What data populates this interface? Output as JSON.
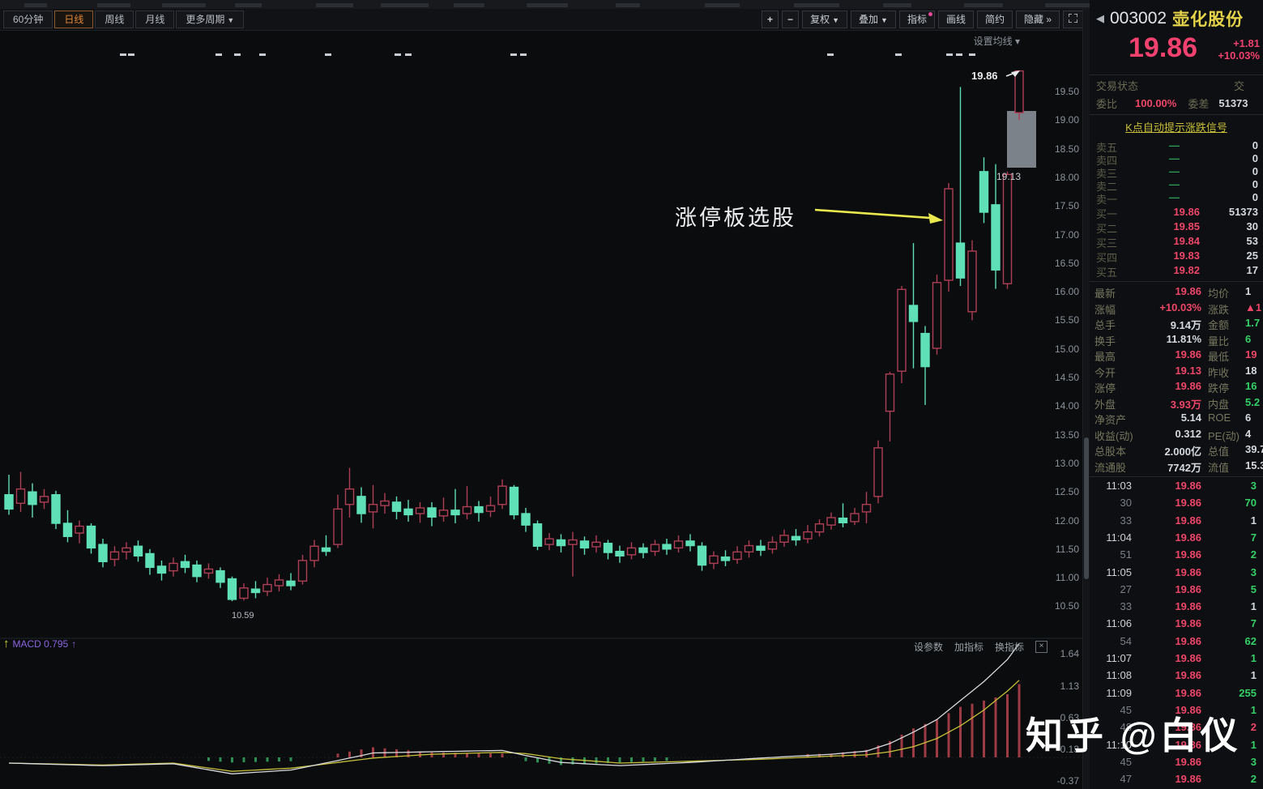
{
  "toolbar": {
    "period_tabs": [
      {
        "label": "60分钟",
        "active": false
      },
      {
        "label": "日线",
        "active": true
      },
      {
        "label": "周线",
        "active": false
      },
      {
        "label": "月线",
        "active": false
      },
      {
        "label": "更多周期",
        "active": false,
        "caret": true
      }
    ],
    "right_buttons": [
      {
        "label": "+",
        "sq": true
      },
      {
        "label": "−",
        "sq": true
      },
      {
        "label": "复权",
        "caret": true
      },
      {
        "label": "叠加",
        "caret": true
      },
      {
        "label": "指标",
        "dot": true
      },
      {
        "label": "画线"
      },
      {
        "label": "简约"
      },
      {
        "label": "隐藏 »"
      }
    ],
    "ma_setting": "设置均线 ▾"
  },
  "stock": {
    "code": "003002",
    "name": "壶化股份",
    "price": "19.86",
    "change": "+1.81",
    "change_pct": "+10.03%"
  },
  "panel": {
    "trade_status_label": "交易状态",
    "trade_status_right": "交",
    "weibi_label": "委比",
    "weibi_value": "100.00%",
    "weicha_label": "委差",
    "weicha_value": "51373",
    "signal_link": "K点自动提示涨跌信号",
    "sell_rows": [
      {
        "label": "卖五",
        "dash": "—",
        "vol": "0"
      },
      {
        "label": "卖四",
        "dash": "—",
        "vol": "0"
      },
      {
        "label": "卖三",
        "dash": "—",
        "vol": "0"
      },
      {
        "label": "卖二",
        "dash": "—",
        "vol": "0"
      },
      {
        "label": "卖一",
        "dash": "—",
        "vol": "0"
      }
    ],
    "buy_rows": [
      {
        "label": "买一",
        "price": "19.86",
        "vol": "51373"
      },
      {
        "label": "买二",
        "price": "19.85",
        "vol": "30"
      },
      {
        "label": "买三",
        "price": "19.84",
        "vol": "53"
      },
      {
        "label": "买四",
        "price": "19.83",
        "vol": "25"
      },
      {
        "label": "买五",
        "price": "19.82",
        "vol": "17"
      }
    ],
    "stats": [
      {
        "l": "最新",
        "v": "19.86",
        "vc": "pink",
        "l2": "均价",
        "v2": "1",
        "v2c": "white"
      },
      {
        "l": "涨幅",
        "v": "+10.03%",
        "vc": "pink",
        "l2": "涨跌",
        "v2": "▲1",
        "v2c": "pink"
      },
      {
        "l": "总手",
        "v": "9.14万",
        "vc": "white",
        "l2": "金额",
        "v2": "1.7",
        "v2c": "green"
      },
      {
        "l": "换手",
        "v": "11.81%",
        "vc": "white",
        "l2": "量比",
        "v2": "6",
        "v2c": "green"
      },
      {
        "l": "最高",
        "v": "19.86",
        "vc": "pink",
        "l2": "最低",
        "v2": "19",
        "v2c": "pink"
      },
      {
        "l": "今开",
        "v": "19.13",
        "vc": "pink",
        "l2": "昨收",
        "v2": "18",
        "v2c": "white"
      },
      {
        "l": "涨停",
        "v": "19.86",
        "vc": "pink",
        "l2": "跌停",
        "v2": "16",
        "v2c": "green"
      },
      {
        "l": "外盘",
        "v": "3.93万",
        "vc": "pink",
        "l2": "内盘",
        "v2": "5.2",
        "v2c": "green"
      },
      {
        "l": "净资产",
        "v": "5.14",
        "vc": "white",
        "l2": "ROE",
        "v2": "6",
        "v2c": "white"
      },
      {
        "l": "收益(动)",
        "v": "0.312",
        "vc": "white",
        "l2": "PE(动)",
        "v2": "4",
        "v2c": "white"
      },
      {
        "l": "总股本",
        "v": "2.000亿",
        "vc": "white",
        "l2": "总值",
        "v2": "39.7",
        "v2c": "white"
      },
      {
        "l": "流通股",
        "v": "7742万",
        "vc": "white",
        "l2": "流值",
        "v2": "15.3",
        "v2c": "white"
      }
    ],
    "ticks": [
      {
        "t": "11:03",
        "sub": false,
        "p": "19.86",
        "v": "3",
        "c": "green"
      },
      {
        "t": "30",
        "sub": true,
        "p": "19.86",
        "v": "70",
        "c": "green"
      },
      {
        "t": "33",
        "sub": true,
        "p": "19.86",
        "v": "1",
        "c": "white"
      },
      {
        "t": "11:04",
        "sub": false,
        "p": "19.86",
        "v": "7",
        "c": "green"
      },
      {
        "t": "51",
        "sub": true,
        "p": "19.86",
        "v": "2",
        "c": "green"
      },
      {
        "t": "11:05",
        "sub": false,
        "p": "19.86",
        "v": "3",
        "c": "green"
      },
      {
        "t": "27",
        "sub": true,
        "p": "19.86",
        "v": "5",
        "c": "green"
      },
      {
        "t": "33",
        "sub": true,
        "p": "19.86",
        "v": "1",
        "c": "white"
      },
      {
        "t": "11:06",
        "sub": false,
        "p": "19.86",
        "v": "7",
        "c": "green"
      },
      {
        "t": "54",
        "sub": true,
        "p": "19.86",
        "v": "62",
        "c": "green"
      },
      {
        "t": "11:07",
        "sub": false,
        "p": "19.86",
        "v": "1",
        "c": "green"
      },
      {
        "t": "11:08",
        "sub": false,
        "p": "19.86",
        "v": "1",
        "c": "white"
      },
      {
        "t": "11:09",
        "sub": false,
        "p": "19.86",
        "v": "255",
        "c": "green"
      },
      {
        "t": "45",
        "sub": true,
        "p": "19.86",
        "v": "1",
        "c": "green"
      },
      {
        "t": "48",
        "sub": true,
        "p": "19.86",
        "v": "2",
        "c": "pink"
      },
      {
        "t": "11:10",
        "sub": false,
        "p": "19.86",
        "v": "1",
        "c": "green"
      },
      {
        "t": "45",
        "sub": true,
        "p": "19.86",
        "v": "3",
        "c": "green"
      },
      {
        "t": "47",
        "sub": true,
        "p": "19.86",
        "v": "2",
        "c": "green"
      }
    ]
  },
  "indicator": {
    "label": "MACD 0.795",
    "buttons": [
      "设参数",
      "加指标",
      "换指标"
    ],
    "y_labels": [
      {
        "text": "1.64",
        "value": 1.64
      },
      {
        "text": "1.13",
        "value": 1.13
      },
      {
        "text": "0.63",
        "value": 0.63
      },
      {
        "text": "0.13",
        "value": 0.13
      },
      {
        "text": "-0.37",
        "value": -0.37
      }
    ]
  },
  "chart_data": {
    "type": "candlestick",
    "symbol": "003002 壶化股份",
    "period": "日线",
    "y_axis": {
      "min": 10.5,
      "max": 19.5,
      "step": 0.5,
      "labels": [
        "19.50",
        "19.00",
        "18.50",
        "18.00",
        "17.50",
        "17.00",
        "16.50",
        "16.00",
        "15.50",
        "15.00",
        "14.50",
        "14.00",
        "13.50",
        "13.00",
        "12.50",
        "12.00",
        "11.50",
        "11.00",
        "10.50"
      ]
    },
    "candles": [
      [
        12.45,
        12.2,
        12.8,
        12.1
      ],
      [
        12.3,
        12.55,
        12.85,
        12.15
      ],
      [
        12.5,
        12.28,
        12.65,
        12.05
      ],
      [
        12.32,
        12.42,
        12.55,
        12.2
      ],
      [
        12.45,
        11.95,
        12.52,
        11.85
      ],
      [
        11.95,
        11.72,
        12.18,
        11.62
      ],
      [
        11.78,
        11.9,
        12.0,
        11.6
      ],
      [
        11.9,
        11.52,
        11.95,
        11.42
      ],
      [
        11.58,
        11.28,
        11.68,
        11.18
      ],
      [
        11.32,
        11.45,
        11.55,
        11.2
      ],
      [
        11.45,
        11.52,
        11.62,
        11.32
      ],
      [
        11.55,
        11.38,
        11.65,
        11.28
      ],
      [
        11.42,
        11.18,
        11.5,
        11.05
      ],
      [
        11.2,
        11.08,
        11.3,
        10.95
      ],
      [
        11.12,
        11.25,
        11.35,
        11.02
      ],
      [
        11.28,
        11.18,
        11.4,
        11.08
      ],
      [
        11.22,
        11.02,
        11.3,
        10.92
      ],
      [
        11.08,
        11.15,
        11.25,
        10.98
      ],
      [
        11.12,
        10.92,
        11.18,
        10.82
      ],
      [
        10.98,
        10.62,
        11.02,
        10.59
      ],
      [
        10.64,
        10.82,
        10.9,
        10.6
      ],
      [
        10.8,
        10.74,
        10.94,
        10.64
      ],
      [
        10.76,
        10.88,
        11.0,
        10.68
      ],
      [
        10.86,
        10.96,
        11.06,
        10.76
      ],
      [
        10.94,
        10.86,
        11.08,
        10.78
      ],
      [
        10.94,
        11.3,
        11.4,
        10.88
      ],
      [
        11.3,
        11.55,
        11.66,
        11.18
      ],
      [
        11.52,
        11.46,
        11.74,
        11.38
      ],
      [
        11.58,
        12.2,
        12.45,
        11.52
      ],
      [
        12.28,
        12.55,
        12.92,
        12.05
      ],
      [
        12.42,
        12.12,
        12.58,
        11.96
      ],
      [
        12.15,
        12.28,
        12.62,
        11.86
      ],
      [
        12.26,
        12.34,
        12.48,
        12.12
      ],
      [
        12.32,
        12.16,
        12.42,
        12.02
      ],
      [
        12.2,
        12.1,
        12.36,
        11.98
      ],
      [
        12.12,
        12.22,
        12.32,
        11.96
      ],
      [
        12.22,
        12.06,
        12.32,
        11.9
      ],
      [
        12.08,
        12.18,
        12.4,
        11.98
      ],
      [
        12.18,
        12.1,
        12.55,
        11.95
      ],
      [
        12.12,
        12.24,
        12.6,
        12.02
      ],
      [
        12.24,
        12.14,
        12.34,
        11.98
      ],
      [
        12.16,
        12.26,
        12.42,
        12.06
      ],
      [
        12.28,
        12.6,
        12.72,
        12.2
      ],
      [
        12.58,
        12.1,
        12.62,
        12.02
      ],
      [
        12.12,
        11.92,
        12.22,
        11.8
      ],
      [
        11.94,
        11.55,
        12.0,
        11.48
      ],
      [
        11.58,
        11.68,
        11.78,
        11.48
      ],
      [
        11.66,
        11.56,
        11.76,
        11.44
      ],
      [
        11.58,
        11.66,
        11.8,
        11.02
      ],
      [
        11.64,
        11.52,
        11.72,
        11.4
      ],
      [
        11.54,
        11.62,
        11.74,
        11.44
      ],
      [
        11.6,
        11.44,
        11.66,
        11.32
      ],
      [
        11.46,
        11.38,
        11.56,
        11.26
      ],
      [
        11.4,
        11.52,
        11.62,
        11.32
      ],
      [
        11.52,
        11.44,
        11.6,
        11.34
      ],
      [
        11.46,
        11.58,
        11.66,
        11.38
      ],
      [
        11.58,
        11.5,
        11.68,
        11.4
      ],
      [
        11.52,
        11.64,
        11.74,
        11.44
      ],
      [
        11.64,
        11.56,
        11.76,
        11.46
      ],
      [
        11.55,
        11.22,
        11.62,
        11.12
      ],
      [
        11.25,
        11.38,
        11.46,
        11.15
      ],
      [
        11.36,
        11.3,
        11.48,
        11.2
      ],
      [
        11.32,
        11.45,
        11.55,
        11.24
      ],
      [
        11.45,
        11.56,
        11.65,
        11.35
      ],
      [
        11.55,
        11.48,
        11.66,
        11.38
      ],
      [
        11.5,
        11.62,
        11.72,
        11.42
      ],
      [
        11.62,
        11.74,
        11.84,
        11.54
      ],
      [
        11.72,
        11.66,
        11.85,
        11.56
      ],
      [
        11.68,
        11.8,
        11.92,
        11.6
      ],
      [
        11.8,
        11.94,
        12.02,
        11.72
      ],
      [
        11.92,
        12.05,
        12.14,
        11.84
      ],
      [
        12.04,
        11.96,
        12.3,
        11.88
      ],
      [
        11.98,
        12.12,
        12.22,
        11.92
      ],
      [
        12.15,
        12.28,
        12.5,
        11.95
      ],
      [
        12.42,
        13.27,
        13.4,
        12.3
      ],
      [
        13.91,
        14.56,
        14.6,
        13.38
      ],
      [
        14.61,
        16.04,
        16.1,
        14.4
      ],
      [
        15.76,
        15.48,
        16.85,
        14.66
      ],
      [
        15.27,
        14.69,
        15.4,
        14.02
      ],
      [
        15.01,
        16.16,
        16.3,
        14.9
      ],
      [
        16.2,
        17.8,
        17.9,
        16.0
      ],
      [
        16.85,
        16.24,
        19.58,
        16.1
      ],
      [
        15.65,
        16.71,
        16.9,
        15.5
      ],
      [
        18.1,
        17.39,
        18.35,
        17.2
      ],
      [
        17.52,
        16.38,
        18.23,
        16.05
      ],
      [
        16.14,
        18.05,
        18.1,
        16.05
      ],
      [
        19.13,
        19.86,
        19.86,
        19.0
      ]
    ],
    "macd": {
      "dif": [
        [
          0,
          -0.09
        ],
        [
          8,
          -0.13
        ],
        [
          14,
          -0.1
        ],
        [
          19,
          -0.26
        ],
        [
          24,
          -0.2
        ],
        [
          28,
          -0.05
        ],
        [
          31,
          0.07
        ],
        [
          36,
          0.09
        ],
        [
          42,
          0.11
        ],
        [
          44,
          0.03
        ],
        [
          47,
          -0.08
        ],
        [
          52,
          -0.13
        ],
        [
          58,
          -0.08
        ],
        [
          64,
          -0.01
        ],
        [
          70,
          0.05
        ],
        [
          73,
          0.1
        ],
        [
          75,
          0.22
        ],
        [
          77,
          0.4
        ],
        [
          79,
          0.6
        ],
        [
          81,
          0.9
        ],
        [
          83,
          1.2
        ],
        [
          85,
          1.55
        ],
        [
          86,
          1.8
        ]
      ],
      "dea": [
        [
          0,
          -0.09
        ],
        [
          8,
          -0.12
        ],
        [
          14,
          -0.09
        ],
        [
          19,
          -0.22
        ],
        [
          24,
          -0.17
        ],
        [
          28,
          -0.08
        ],
        [
          31,
          -0.01
        ],
        [
          36,
          0.05
        ],
        [
          42,
          0.08
        ],
        [
          44,
          0.06
        ],
        [
          47,
          -0.02
        ],
        [
          52,
          -0.09
        ],
        [
          58,
          -0.06
        ],
        [
          64,
          -0.03
        ],
        [
          70,
          0.02
        ],
        [
          73,
          0.04
        ],
        [
          75,
          0.09
        ],
        [
          77,
          0.17
        ],
        [
          79,
          0.3
        ],
        [
          81,
          0.5
        ],
        [
          83,
          0.75
        ],
        [
          85,
          1.05
        ],
        [
          86,
          1.22
        ]
      ]
    },
    "top_markers": [
      148,
      158,
      266,
      289,
      320,
      401,
      487,
      500,
      630,
      642,
      1021,
      1105,
      1168,
      1180,
      1196
    ],
    "annotations": {
      "high_label": "19.86",
      "zt_text": "涨停板选股",
      "low_label": "10.59",
      "open_label": "19.13"
    },
    "colors": {
      "up": "#ae3e56",
      "down": "#5fe0b6",
      "dif_line": "#d9dbde",
      "dea_line": "#c8c13b",
      "hist_up": "#9e3a44",
      "hist_down": "#2f8f55",
      "highlight_box": "#878d94",
      "arrow": "#e9e94e"
    }
  },
  "watermark": "知乎 @白仪"
}
